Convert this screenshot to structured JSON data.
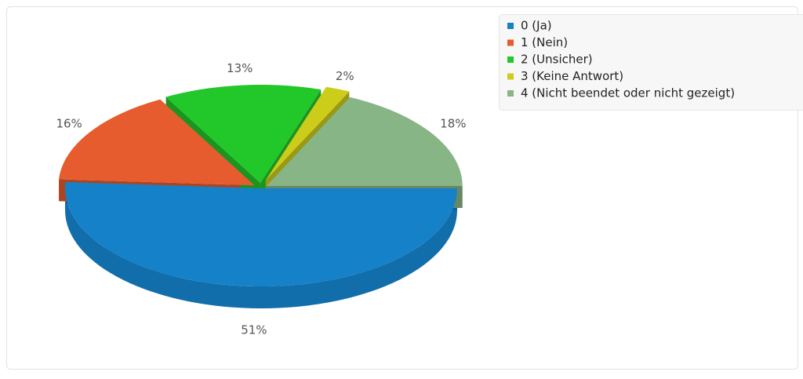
{
  "chart_data": {
    "type": "pie",
    "categories": [
      "0 (Ja)",
      "1 (Nein)",
      "2 (Unsicher)",
      "3 (Keine Antwort)",
      "4 (Nicht beendet oder nicht gezeigt)"
    ],
    "values": [
      51,
      16,
      13,
      2,
      18
    ],
    "value_labels": [
      "51%",
      "16%",
      "13%",
      "2%",
      "18%"
    ],
    "colors": [
      "#1581c9",
      "#e65c2e",
      "#22c72a",
      "#cccc1a",
      "#88b585"
    ],
    "three_d": true
  }
}
